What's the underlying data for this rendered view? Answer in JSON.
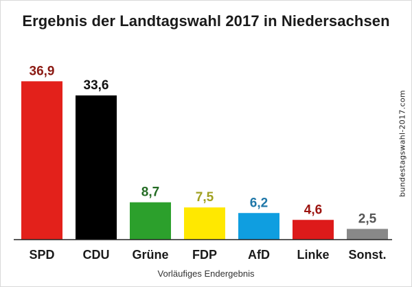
{
  "chart_data": {
    "type": "bar",
    "title": "Ergebnis der Landtagswahl 2017 in Niedersachsen",
    "subtitle": "Vorläufiges Endergebnis",
    "source": "bundestagswahl-2017.com",
    "categories": [
      "SPD",
      "CDU",
      "Grüne",
      "FDP",
      "AfD",
      "Linke",
      "Sonst."
    ],
    "values": [
      36.9,
      33.6,
      8.7,
      7.5,
      6.2,
      4.6,
      2.5
    ],
    "value_labels": [
      "36,9",
      "33,6",
      "8,7",
      "7,5",
      "6,2",
      "4,6",
      "2,5"
    ],
    "bar_colors": [
      "#e3211b",
      "#000000",
      "#2ca02c",
      "#ffe800",
      "#0f9ee0",
      "#dd1a1a",
      "#888888"
    ],
    "label_colors": [
      "#8b1a13",
      "#111111",
      "#236b23",
      "#a0a020",
      "#1f77a8",
      "#9c1410",
      "#555555"
    ],
    "ylim": [
      0,
      40
    ],
    "grid": false,
    "xlabel": "",
    "ylabel": ""
  }
}
